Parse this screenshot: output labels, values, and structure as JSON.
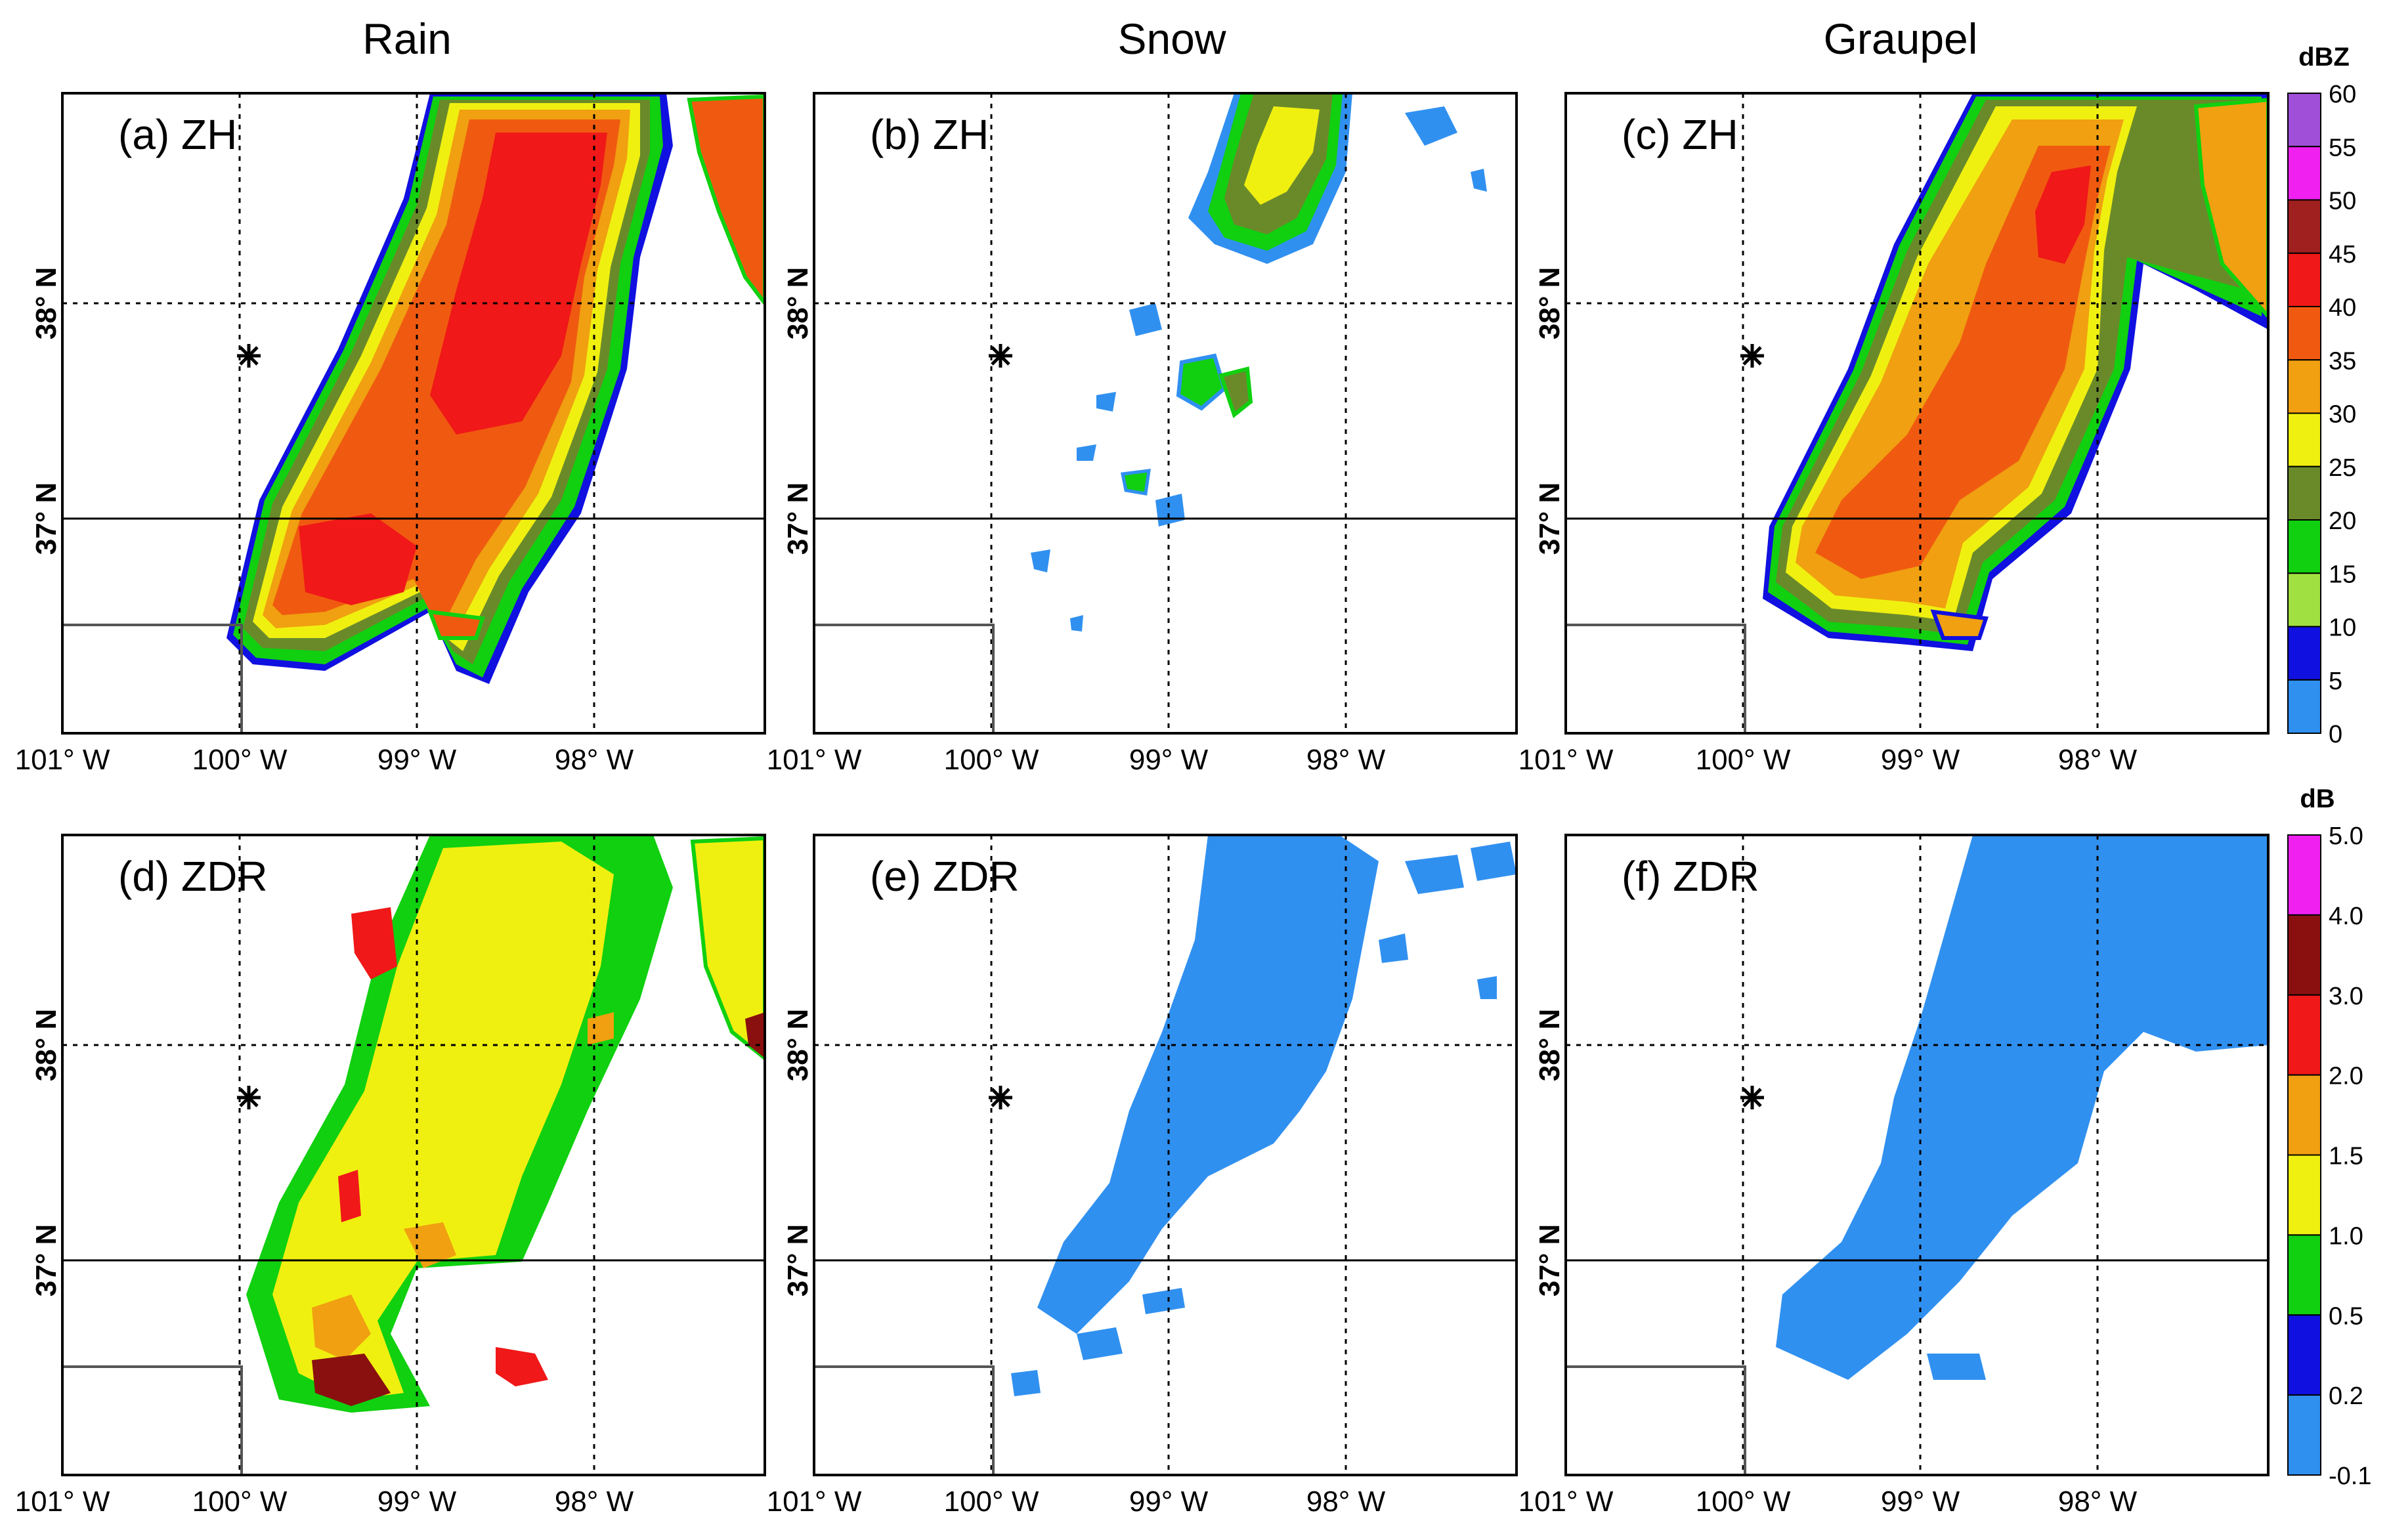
{
  "column_titles": [
    "Rain",
    "Snow",
    "Graupel"
  ],
  "panels": [
    {
      "label": "(a) ZH",
      "species": "Rain",
      "variable": "ZH"
    },
    {
      "label": "(b) ZH",
      "species": "Snow",
      "variable": "ZH"
    },
    {
      "label": "(c) ZH",
      "species": "Graupel",
      "variable": "ZH"
    },
    {
      "label": "(d) ZDR",
      "species": "Rain",
      "variable": "ZDR"
    },
    {
      "label": "(e) ZDR",
      "species": "Snow",
      "variable": "ZDR"
    },
    {
      "label": "(f) ZDR",
      "species": "Graupel",
      "variable": "ZDR"
    }
  ],
  "lon_ticks": [
    "101° W",
    "100° W",
    "99° W",
    "98° W"
  ],
  "lat_ticks": [
    "38° N",
    "37° N"
  ],
  "map_extent": {
    "lon_min": -101,
    "lon_max": -97.1,
    "lat_min": 36,
    "lat_max": 39
  },
  "radar_site": {
    "lon": -100.0,
    "lat": 37.8,
    "marker": "asterisk"
  },
  "colorbars": [
    {
      "unit": "dBZ",
      "labels": [
        "60",
        "55",
        "50",
        "45",
        "40",
        "35",
        "30",
        "25",
        "20",
        "15",
        "10",
        "5",
        "0"
      ],
      "colors": [
        "#a050d8",
        "#f020f0",
        "#a02020",
        "#f01818",
        "#f05a10",
        "#f0a010",
        "#f0f010",
        "#6a8a2a",
        "#10d010",
        "#a0e040",
        "#1010e0",
        "#3090f0"
      ]
    },
    {
      "unit": "dB",
      "labels": [
        "5.0",
        "4.0",
        "3.0",
        "2.0",
        "1.5",
        "1.0",
        "0.5",
        "0.2",
        "-0.1"
      ],
      "colors": [
        "#f020f0",
        "#8a1010",
        "#f01818",
        "#f0a010",
        "#f0f010",
        "#10d010",
        "#1010e0",
        "#3090f0"
      ]
    }
  ]
}
